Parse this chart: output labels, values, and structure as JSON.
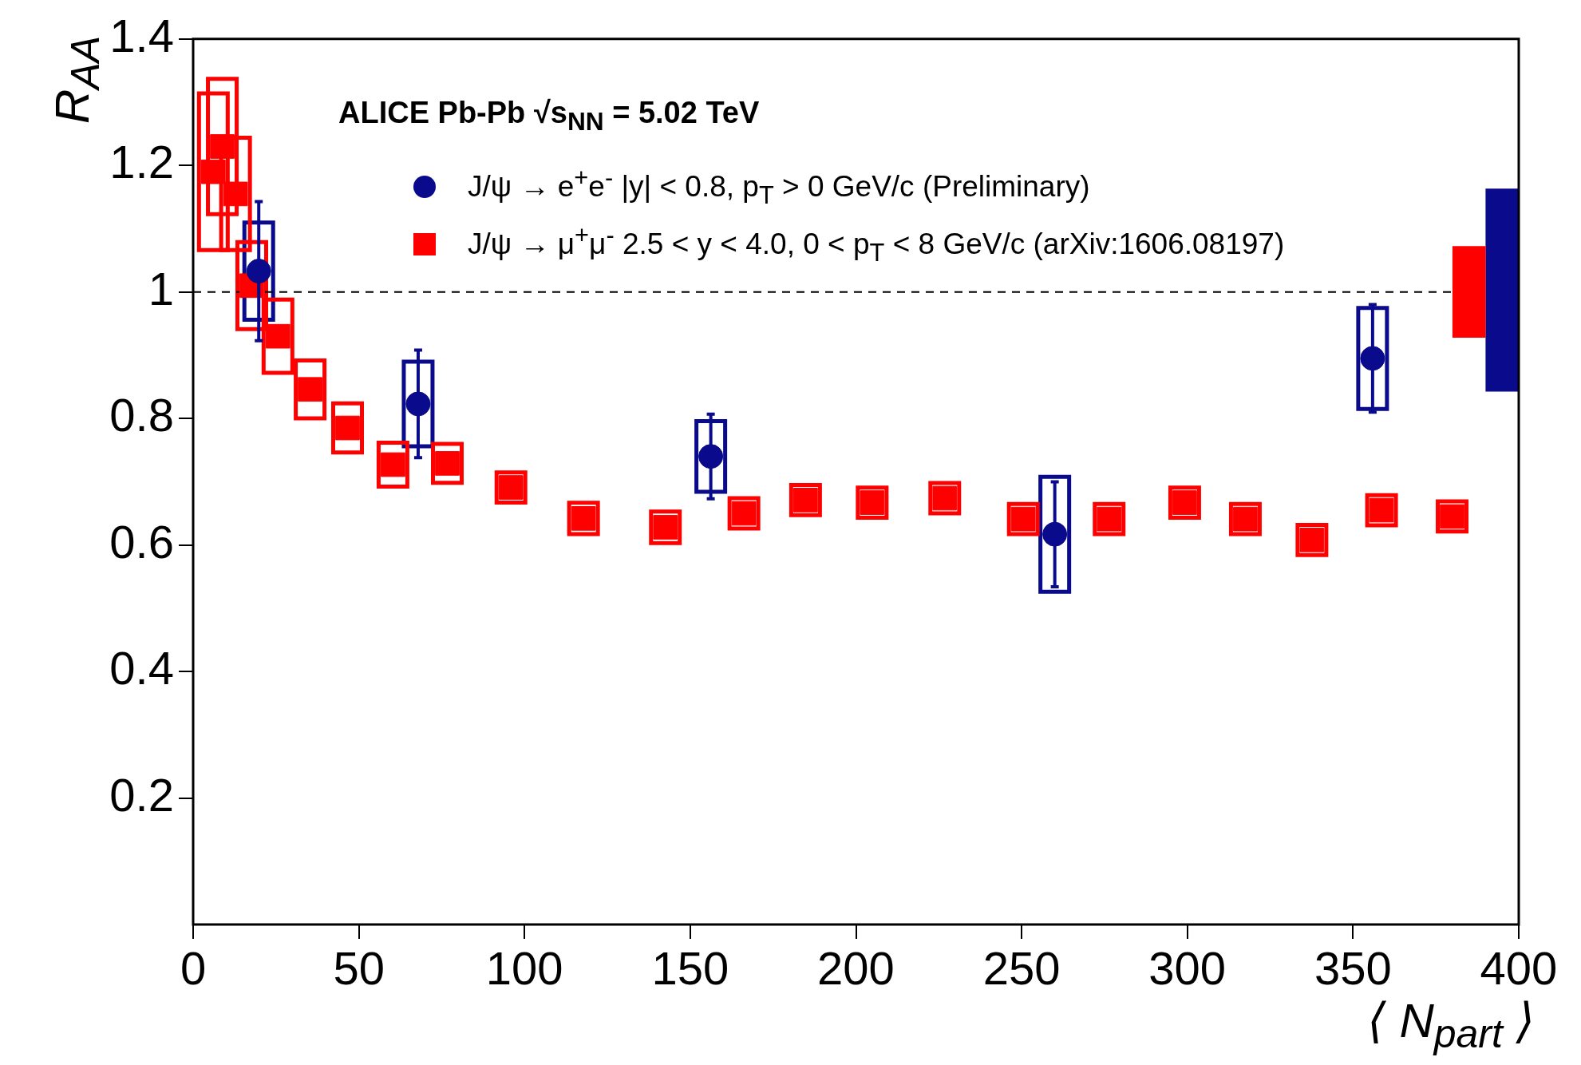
{
  "chart_data": {
    "type": "scatter",
    "title": "ALICE Pb-Pb √s$_{NN}$ = 5.02 TeV",
    "xlabel": "⟨ N$_{part}$ ⟩",
    "ylabel": "R$_{AA}$",
    "xlim": [
      0,
      400
    ],
    "xticks": [
      0,
      50,
      100,
      150,
      200,
      250,
      300,
      350,
      400
    ],
    "ylim": [
      0,
      1.4
    ],
    "yticks": [
      0.2,
      0.4,
      0.6,
      0.8,
      1,
      1.2,
      1.4
    ],
    "grid": false,
    "legend": "top left",
    "series": [
      {
        "name": "J/ψ → e$^{+}$e$^{-}$ |y| < 0.8, p$_{T}$ > 0 GeV/c (Preliminary)",
        "marker": "circle",
        "color": "#0a0a8c",
        "x": [
          19.8,
          67.9,
          156.2,
          260,
          355.9
        ],
        "values": [
          1.033,
          0.823,
          0.74,
          0.617,
          0.895
        ],
        "errors": [
          0.11,
          0.085,
          0.067,
          0.083,
          0.085
        ]
      },
      {
        "name": "J/ψ → μ$^{+}$μ$^{-}$ 2.5 < y < 4.0, 0 < p$_{T}$ < 8  GeV/c (arXiv:1606.08197)",
        "marker": "square",
        "color": "#ff0000",
        "x": [
          6.1,
          8.8,
          12.8,
          17.7,
          25.6,
          35.3,
          46.6,
          60.3,
          76.7,
          95.9,
          117.8,
          142.5,
          166.2,
          184.8,
          204.9,
          226.8,
          250.5,
          276.4,
          299.2,
          317.5,
          337.6,
          358.6,
          379.9
        ],
        "values": [
          1.19,
          1.23,
          1.155,
          1.01,
          0.93,
          0.846,
          0.785,
          0.727,
          0.729,
          0.691,
          0.642,
          0.628,
          0.65,
          0.671,
          0.667,
          0.674,
          0.641,
          0.641,
          0.667,
          0.641,
          0.608,
          0.655,
          0.645
        ]
      },
      {
        "type": "bar",
        "line_style": "solid",
        "color": "#0a0a8c",
        "x": [
          19.8,
          67.9,
          156.2,
          260,
          355.9
        ],
        "base": [
          0.953,
          0.753,
          0.681,
          0.523,
          0.812
        ],
        "values": [
          0.16,
          0.14,
          0.118,
          0.188,
          0.166
        ]
      },
      {
        "type": "bar",
        "line_style": "solid",
        "color": "#ff0000",
        "x": [
          6.1,
          8.8,
          12.8,
          17.7,
          25.6,
          35.3,
          46.6,
          60.3,
          76.7,
          95.9,
          117.8,
          142.5,
          166.2,
          184.8,
          204.9,
          226.8,
          250.5,
          276.4,
          299.2,
          317.5,
          337.6,
          358.6,
          379.9
        ],
        "base": [
          1.063,
          1.12,
          1.063,
          0.938,
          0.869,
          0.797,
          0.743,
          0.689,
          0.695,
          0.664,
          0.614,
          0.6,
          0.623,
          0.644,
          0.64,
          0.647,
          0.614,
          0.614,
          0.64,
          0.614,
          0.581,
          0.628,
          0.618
        ],
        "values": [
          0.254,
          0.22,
          0.184,
          0.144,
          0.122,
          0.098,
          0.084,
          0.076,
          0.068,
          0.054,
          0.056,
          0.056,
          0.054,
          0.054,
          0.054,
          0.054,
          0.054,
          0.054,
          0.054,
          0.054,
          0.054,
          0.054,
          0.054
        ]
      },
      {
        "type": "bar",
        "color": "#ff0000",
        "x": [
          385
        ],
        "base": [
          0.928
        ],
        "values": [
          0.144
        ]
      },
      {
        "type": "bar",
        "color": "#0a0a8c",
        "x": [
          395
        ],
        "base": [
          0.843
        ],
        "values": [
          0.32
        ]
      }
    ],
    "ref_lines": [
      {
        "axis": "y",
        "value": 1,
        "line_style": "dashed",
        "color": "#000000"
      }
    ]
  }
}
